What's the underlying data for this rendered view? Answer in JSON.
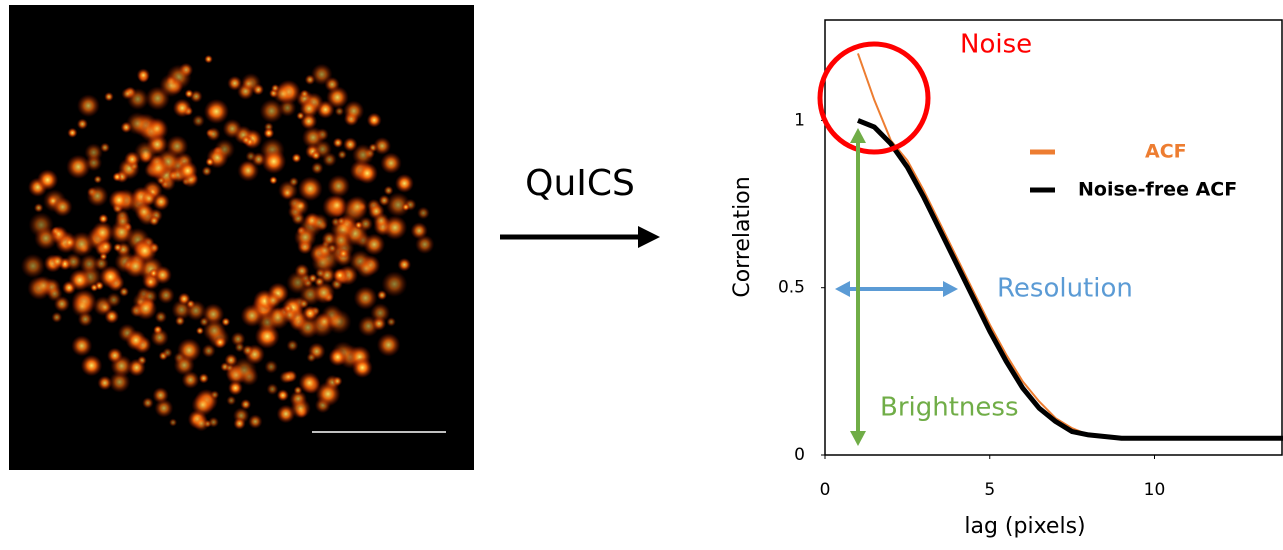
{
  "flow_label": "QuICS",
  "chart_data": {
    "type": "line",
    "x_label": "lag (pixels)",
    "y_label": "Correlation",
    "x": [
      1,
      1.5,
      2,
      2.5,
      3,
      3.5,
      4,
      4.5,
      5,
      5.5,
      6,
      6.5,
      7,
      7.5,
      8,
      9,
      10,
      11,
      12,
      13,
      13.9
    ],
    "series": [
      {
        "name": "ACF",
        "color": "#ed7d31",
        "width": 2,
        "values": [
          1.2,
          1.06,
          0.94,
          0.88,
          0.79,
          0.69,
          0.59,
          0.49,
          0.39,
          0.3,
          0.22,
          0.16,
          0.11,
          0.08,
          0.06,
          0.05,
          0.05,
          0.05,
          0.05,
          0.05,
          0.05
        ]
      },
      {
        "name": "Noise-free ACF",
        "color": "#000000",
        "width": 5,
        "values": [
          1.0,
          0.98,
          0.93,
          0.86,
          0.77,
          0.67,
          0.57,
          0.47,
          0.37,
          0.28,
          0.2,
          0.14,
          0.1,
          0.07,
          0.06,
          0.05,
          0.05,
          0.05,
          0.05,
          0.05,
          0.05
        ]
      }
    ],
    "xlim": [
      0,
      13.9
    ],
    "ylim": [
      0,
      1.3
    ],
    "xticks": [
      0,
      5,
      10
    ],
    "yticks": [
      0,
      0.5,
      1
    ],
    "annotations": {
      "noise": "Noise",
      "resolution": "Resolution",
      "brightness": "Brightness"
    }
  }
}
